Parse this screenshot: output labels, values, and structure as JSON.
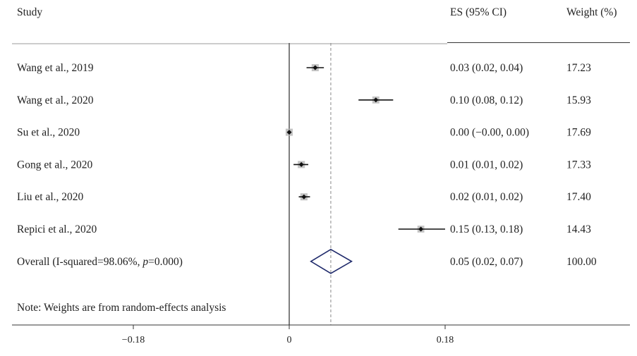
{
  "headers": {
    "study": "Study",
    "es": "ES (95% CI)",
    "weight": "Weight (%)"
  },
  "note": "Note: Weights are from random-effects analysis",
  "colors": {
    "line": "#555555",
    "ci": "#111111",
    "diamond": "#1f2a6b",
    "ref": "#888888",
    "box": "#b5b5b5"
  },
  "chart_data": {
    "type": "forest",
    "xlim": [
      -0.18,
      0.18
    ],
    "ticks": [
      {
        "value": -0.18,
        "label": "−0.18"
      },
      {
        "value": 0,
        "label": "0"
      },
      {
        "value": 0.18,
        "label": "0.18"
      }
    ],
    "null_value": 0,
    "pooled_reference": 0.048,
    "studies": [
      {
        "label": "Wang et al., 2019",
        "es": 0.03,
        "lo": 0.02,
        "hi": 0.04,
        "es_text": "0.03 (0.02, 0.04)",
        "weight": "17.23"
      },
      {
        "label": "Wang et al., 2020",
        "es": 0.1,
        "lo": 0.08,
        "hi": 0.12,
        "es_text": "0.10 (0.08, 0.12)",
        "weight": "15.93"
      },
      {
        "label": "Su et al., 2020",
        "es": 0.0,
        "lo": -0.0,
        "hi": 0.0,
        "es_text": "0.00 (−0.00, 0.00)",
        "weight": "17.69"
      },
      {
        "label": "Gong et al., 2020",
        "es": 0.014,
        "lo": 0.005,
        "hi": 0.022,
        "es_text": "0.01 (0.01, 0.02)",
        "weight": "17.33"
      },
      {
        "label": "Liu et al., 2020",
        "es": 0.017,
        "lo": 0.011,
        "hi": 0.024,
        "es_text": "0.02 (0.01, 0.02)",
        "weight": "17.40"
      },
      {
        "label": "Repici et al., 2020",
        "es": 0.152,
        "lo": 0.126,
        "hi": 0.18,
        "es_text": "0.15 (0.13, 0.18)",
        "weight": "14.43"
      }
    ],
    "overall": {
      "label_prefix": "Overall (I-squared=98.06%, ",
      "label_p": "p",
      "label_suffix": "=0.000)",
      "es": 0.048,
      "lo": 0.025,
      "hi": 0.072,
      "es_text": "0.05 (0.02, 0.07)",
      "weight": "100.00"
    }
  }
}
